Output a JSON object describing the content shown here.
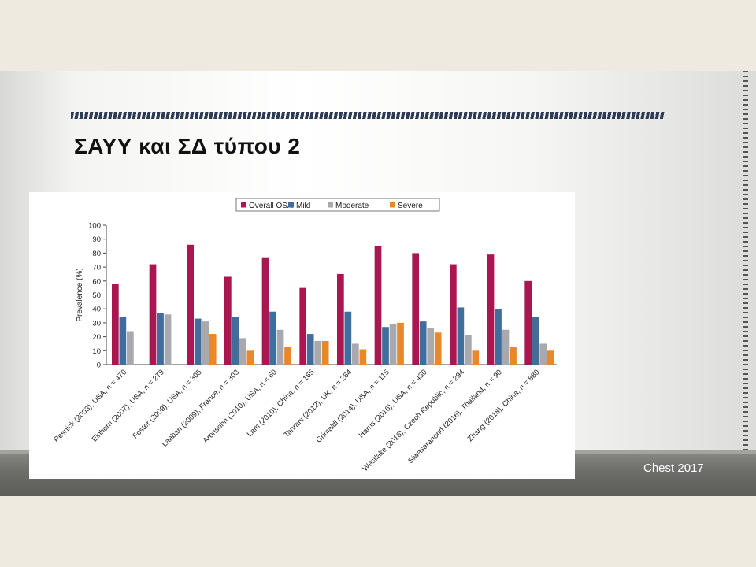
{
  "slide": {
    "title": "ΣΑΥΥ και ΣΔ τύπου 2",
    "source": "Chest 2017"
  },
  "colors": {
    "overall": "#a8174f",
    "mild": "#3f6e9c",
    "moderate": "#a9a9ad",
    "severe": "#e8882a"
  },
  "chart_data": {
    "type": "bar",
    "ylabel": "Prevalence (%)",
    "xlabel": "",
    "ylim": [
      0,
      100
    ],
    "yticks": [
      0,
      10,
      20,
      30,
      40,
      50,
      60,
      70,
      80,
      90,
      100
    ],
    "legend_position": "top",
    "categories": [
      "Resnick (2003), USA, n = 470",
      "Einhorn (2007), USA, n = 279",
      "Foster (2009), USA, n = 305",
      "Laaban (2009), France, n = 303",
      "Aronsohn (2010), USA, n = 60",
      "Lam (2010), China, n = 165",
      "Tahrani (2012), UK, n = 264",
      "Grimaldi (2014), USA, n = 115",
      "Harris (2016), USA, n = 430",
      "Westlake (2016), Czech Republic, n = 294",
      "Siwasaranond (2016), Thailand, n = 90",
      "Zhang (2018), China, n = 880"
    ],
    "series": [
      {
        "name": "Overall OSA",
        "values": [
          58,
          72,
          86,
          63,
          77,
          55,
          65,
          85,
          80,
          72,
          79,
          60
        ]
      },
      {
        "name": "Mild",
        "values": [
          34,
          37,
          33,
          34,
          38,
          22,
          38,
          27,
          31,
          41,
          40,
          34
        ]
      },
      {
        "name": "Moderate",
        "values": [
          24,
          36,
          31,
          19,
          25,
          17,
          15,
          29,
          26,
          21,
          25,
          15
        ]
      },
      {
        "name": "Severe",
        "values": [
          null,
          null,
          22,
          10,
          13,
          17,
          11,
          30,
          23,
          10,
          13,
          10
        ]
      }
    ]
  }
}
